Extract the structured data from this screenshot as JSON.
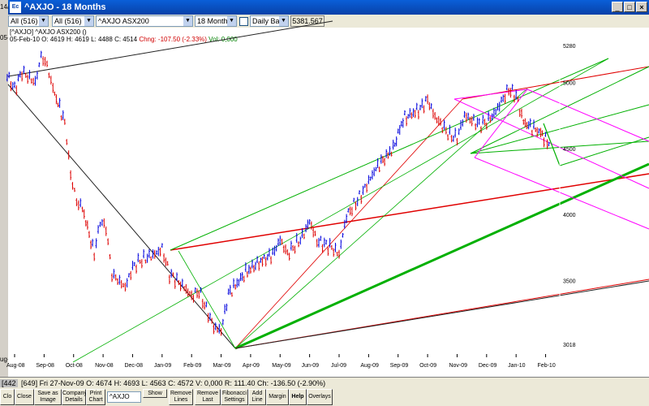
{
  "window": {
    "title": "^AXJO - 18 Months",
    "app_icon": "Ec"
  },
  "left_strip": {
    "top": "14/1",
    "mid": "05-F",
    "bottom": "ug-"
  },
  "toolbar": {
    "list_a": "All (516)",
    "list_b": "All (516)",
    "security": "^AXJO ASX200",
    "period": "18 Months",
    "bar_type": "Daily Bars",
    "readout": "5381.567"
  },
  "info": {
    "symbol_line": "[^AXJO] ^AXJO ASX200 ()",
    "date": "05-Feb-10",
    "o": "O: 4619",
    "h": "H: 4619",
    "l": "L: 4488",
    "c": "C: 4514",
    "chng": "Chng: -107.50 (-2.33%)",
    "vol": "Vol: 0,000"
  },
  "status": {
    "left": "[442",
    "line": "[649] Fri 27-Nov-09  O: 4674  H: 4693  L: 4563  C: 4572  V: 0,000  R: 111.40     Ch: -136.50  (-2.90%)"
  },
  "bottom": {
    "close_partial": "Clo",
    "close": "Close",
    "save_image": "Save as Image",
    "company": "Company Details",
    "print": "Print Chart",
    "search_value": "^AXJO",
    "show": "Show",
    "remove_lines": "Remove Lines",
    "remove_last": "Remove Last",
    "fib": "Fibonacci Settings",
    "add_line": "Add Line",
    "margin": "Margin",
    "help": "Help",
    "overlays": "Overlays"
  },
  "icons": {
    "minimize": "minimize-icon",
    "maximize": "maximize-icon",
    "close": "close-icon",
    "dropdown": "dropdown-arrow-icon"
  },
  "chart_data": {
    "type": "ohlc",
    "x_tick_labels": [
      "Aug-08",
      "Sep-08",
      "Oct-08",
      "Nov-08",
      "Dec-08",
      "Jan-09",
      "Feb-09",
      "Mar-09",
      "Apr-09",
      "May-09",
      "Jun-09",
      "Jul-09",
      "Aug-09",
      "Sep-09",
      "Oct-09",
      "Nov-09",
      "Dec-09",
      "Jan-10",
      "Feb-10"
    ],
    "y_tick_labels": [
      "5280",
      "5000",
      "4500",
      "4000",
      "3500",
      "3018"
    ],
    "y_ticks": [
      5280,
      5000,
      4500,
      4000,
      3500,
      3018
    ],
    "y_range": [
      3018,
      5280
    ],
    "colors": {
      "up": "#0000dd",
      "down": "#dd0000",
      "red_line": "#e00000",
      "green_line": "#00b000",
      "magenta_line": "#ff00ff",
      "dark_line": "#222222"
    },
    "close_path": [
      [
        "Aug-08",
        5050
      ],
      [
        "Aug-08",
        4950
      ],
      [
        "Aug-08",
        5080
      ],
      [
        "Sep-08",
        5000
      ],
      [
        "Sep-08",
        5200
      ],
      [
        "Sep-08",
        5130
      ],
      [
        "Sep-08",
        4950
      ],
      [
        "Oct-08",
        4700
      ],
      [
        "Oct-08",
        4300
      ],
      [
        "Oct-08",
        4100
      ],
      [
        "Oct-08",
        4050
      ],
      [
        "Nov-08",
        3700
      ],
      [
        "Nov-08",
        3950
      ],
      [
        "Nov-08",
        3900
      ],
      [
        "Nov-08",
        3550
      ],
      [
        "Dec-08",
        3450
      ],
      [
        "Dec-08",
        3600
      ],
      [
        "Dec-08",
        3650
      ],
      [
        "Jan-09",
        3700
      ],
      [
        "Jan-09",
        3740
      ],
      [
        "Jan-09",
        3550
      ],
      [
        "Feb-09",
        3450
      ],
      [
        "Feb-09",
        3380
      ],
      [
        "Feb-09",
        3420
      ],
      [
        "Mar-09",
        3150
      ],
      [
        "Mar-09",
        3120
      ],
      [
        "Mar-09",
        3400
      ],
      [
        "Apr-09",
        3560
      ],
      [
        "Apr-09",
        3620
      ],
      [
        "May-09",
        3700
      ],
      [
        "May-09",
        3810
      ],
      [
        "May-09",
        3700
      ],
      [
        "Jun-09",
        3830
      ],
      [
        "Jun-09",
        3950
      ],
      [
        "Jun-09",
        3800
      ],
      [
        "Jul-09",
        3750
      ],
      [
        "Jul-09",
        3700
      ],
      [
        "Jul-09",
        3990
      ],
      [
        "Aug-09",
        4150
      ],
      [
        "Aug-09",
        4250
      ],
      [
        "Aug-09",
        4350
      ],
      [
        "Sep-09",
        4500
      ],
      [
        "Sep-09",
        4720
      ],
      [
        "Oct-09",
        4800
      ],
      [
        "Oct-09",
        4870
      ],
      [
        "Oct-09",
        4740
      ],
      [
        "Nov-09",
        4600
      ],
      [
        "Nov-09",
        4580
      ],
      [
        "Nov-09",
        4750
      ],
      [
        "Dec-09",
        4680
      ],
      [
        "Dec-09",
        4700
      ],
      [
        "Dec-09",
        4760
      ],
      [
        "Jan-10",
        4950
      ],
      [
        "Jan-10",
        4900
      ],
      [
        "Jan-10",
        4700
      ],
      [
        "Feb-10",
        4620
      ],
      [
        "Feb-10",
        4514
      ]
    ]
  }
}
